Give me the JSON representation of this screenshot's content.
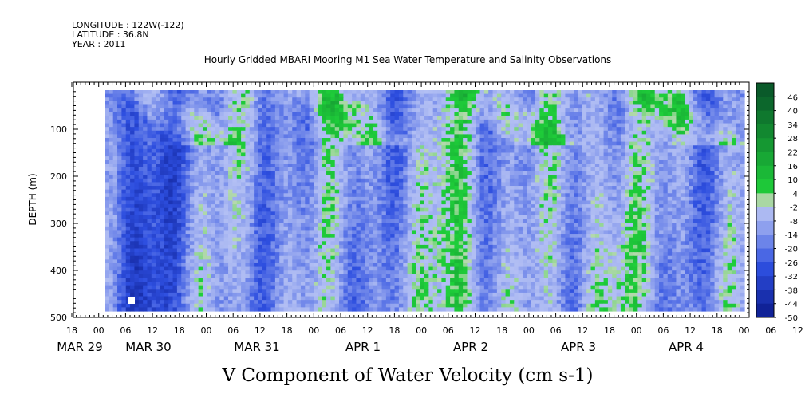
{
  "header": {
    "lines": [
      "LONGITUDE : 122W(-122)",
      "LATITUDE : 36.8N",
      "YEAR : 2011"
    ],
    "title": "Hourly Gridded MBARI Mooring M1 Sea Water Temperature and Salinity Observations"
  },
  "chart_data": {
    "type": "heatmap",
    "title": "Hourly Gridded MBARI Mooring M1 Sea Water Temperature and Salinity Observations",
    "xlabel": "V Component of Water Velocity (cm s-1)",
    "ylabel": "DEPTH (m)",
    "y_range": [
      500,
      0
    ],
    "y_ticks": [
      "100",
      "200",
      "300",
      "400",
      "500"
    ],
    "x_hour_ticks": [
      "18",
      "00",
      "06",
      "12",
      "18",
      "00",
      "06",
      "12",
      "18",
      "00",
      "06",
      "12",
      "18",
      "00",
      "06",
      "12",
      "18",
      "00",
      "06",
      "12",
      "18",
      "00",
      "06",
      "12",
      "18",
      "00",
      "06",
      "12",
      "18"
    ],
    "x_date_labels": [
      "MAR 29",
      "MAR 30",
      "MAR 31",
      "APR  1",
      "APR  2",
      "APR  3",
      "APR  4"
    ],
    "colorbar_labels": [
      "46",
      "40",
      "34",
      "28",
      "22",
      "16",
      "10",
      "4",
      "-2",
      "-8",
      "-14",
      "-20",
      "-26",
      "-32",
      "-38",
      "-44",
      "-50"
    ],
    "colorbar_range": [
      -50,
      52
    ],
    "colors": {
      "positive": "#1fd03a",
      "near_zero": "#aab8f2",
      "negative": "#2e4fe0",
      "dark_negative": "#0b1b8c",
      "dark_positive": "#0a5a2a"
    }
  }
}
